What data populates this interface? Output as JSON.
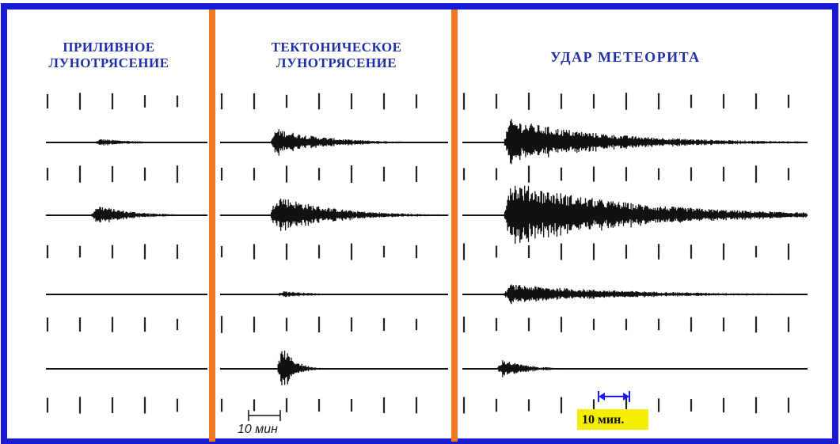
{
  "panels": [
    {
      "id": "tidal",
      "title": "ПРИЛИВНОЕ\nЛУНОТРЯСЕНИЕ"
    },
    {
      "id": "tectonic",
      "title": "ТЕКТОНИЧЕСКОЕ\nЛУНОТРЯСЕНИЕ"
    },
    {
      "id": "meteor",
      "title": "УДАР  МЕТЕОРИТА"
    }
  ],
  "scale": {
    "left_label": "10 мин",
    "right_label": "10 мин."
  },
  "colors": {
    "frame": "#1a1ad6",
    "divider": "#f07820",
    "title_text": "#1f2fa8",
    "trace": "#111111",
    "highlight": "#f5f000",
    "arrow": "#1a1aff"
  },
  "traces": {
    "tidal": [
      {
        "burst": 0.3,
        "amp": 0.12,
        "decay": 0.5
      },
      {
        "burst": 0.28,
        "amp": 0.35,
        "decay": 0.45
      },
      {
        "burst": 0.0,
        "amp": 0.0,
        "decay": 0.0
      },
      {
        "burst": 0.0,
        "amp": 0.0,
        "decay": 0.0
      }
    ],
    "tectonic": [
      {
        "burst": 0.22,
        "amp": 0.45,
        "decay": 0.45
      },
      {
        "burst": 0.22,
        "amp": 0.65,
        "decay": 0.5
      },
      {
        "burst": 0.25,
        "amp": 0.12,
        "decay": 0.3
      },
      {
        "burst": 0.25,
        "amp": 1.0,
        "decay": 0.12
      }
    ],
    "meteor": [
      {
        "burst": 0.12,
        "amp": 0.7,
        "decay": 0.6
      },
      {
        "burst": 0.12,
        "amp": 1.0,
        "decay": 0.75
      },
      {
        "burst": 0.12,
        "amp": 0.3,
        "decay": 0.7
      },
      {
        "burst": 0.1,
        "amp": 0.35,
        "decay": 0.15
      }
    ]
  }
}
